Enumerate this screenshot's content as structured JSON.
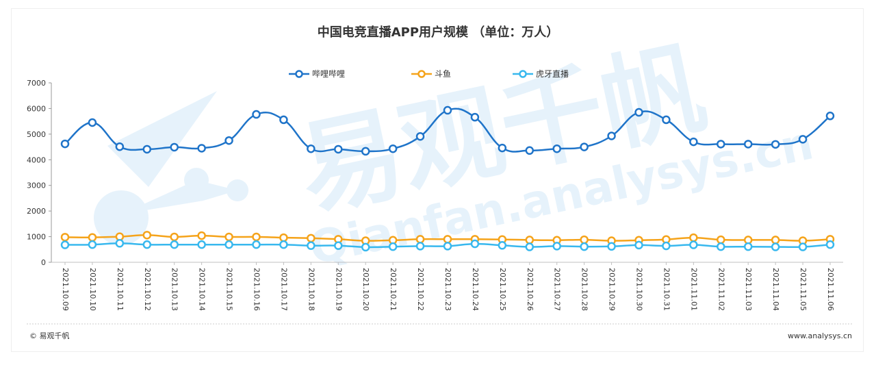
{
  "chart_data": {
    "type": "line",
    "title": "中国电竞直播APP用户规模 （单位：万人）",
    "categories": [
      "2021.10.09",
      "2021.10.10",
      "2021.10.11",
      "2021.10.12",
      "2021.10.13",
      "2021.10.14",
      "2021.10.15",
      "2021.10.16",
      "2021.10.17",
      "2021.10.18",
      "2021.10.19",
      "2021.10.20",
      "2021.10.21",
      "2021.10.22",
      "2021.10.23",
      "2021.10.24",
      "2021.10.25",
      "2021.10.26",
      "2021.10.27",
      "2021.10.28",
      "2021.10.29",
      "2021.10.30",
      "2021.10.31",
      "2021.11.01",
      "2021.11.02",
      "2021.11.03",
      "2021.11.04",
      "2021.11.05",
      "2021.11.06"
    ],
    "series": [
      {
        "name": "哔哩哔哩",
        "color": "#1f74c9",
        "values": [
          4620,
          5450,
          4510,
          4410,
          4490,
          4450,
          4750,
          5770,
          5560,
          4430,
          4410,
          4330,
          4430,
          4910,
          5930,
          5660,
          4460,
          4360,
          4430,
          4500,
          4930,
          5850,
          5560,
          4700,
          4610,
          4610,
          4600,
          4800,
          5710
        ]
      },
      {
        "name": "斗鱼",
        "color": "#f5a31a",
        "values": [
          980,
          970,
          1000,
          1060,
          990,
          1040,
          990,
          990,
          960,
          940,
          900,
          840,
          860,
          900,
          900,
          900,
          890,
          870,
          860,
          880,
          840,
          860,
          890,
          960,
          880,
          870,
          870,
          840,
          900
        ]
      },
      {
        "name": "虎牙直播",
        "color": "#38b8ee",
        "values": [
          680,
          690,
          740,
          690,
          690,
          690,
          690,
          690,
          690,
          650,
          650,
          590,
          610,
          630,
          630,
          720,
          660,
          600,
          630,
          610,
          620,
          670,
          640,
          680,
          610,
          610,
          600,
          600,
          690
        ]
      }
    ],
    "yticks": [
      0,
      1000,
      2000,
      3000,
      4000,
      5000,
      6000,
      7000
    ],
    "ytick_labels": [
      "0",
      "1000",
      "2000",
      "3000",
      "4000",
      "5000",
      "6000",
      "7000"
    ],
    "ylim": [
      0,
      7000
    ],
    "grid": false,
    "legend_position": "top-center"
  },
  "footer": {
    "left": "© 易观千帆",
    "right": "www.analysys.cn"
  },
  "watermark": {
    "main": "易观千帆",
    "sub": "Qianfan.analysys.cn"
  }
}
